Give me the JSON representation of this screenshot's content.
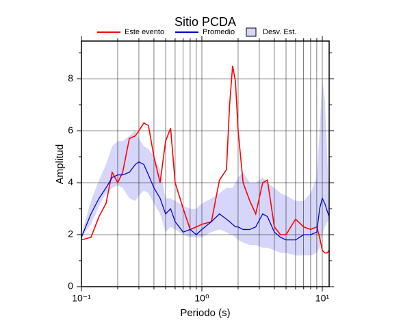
{
  "chart_data": {
    "type": "line",
    "title": "Sitio PCDA",
    "xlabel": "Periodo (s)",
    "ylabel": "Amplitud",
    "xscale": "log",
    "grid": true,
    "legend": "top",
    "xlim": [
      0.1,
      11.4
    ],
    "ylim": [
      0,
      9.45
    ],
    "xticks": [
      {
        "value": 0.1,
        "label": "10⁻¹"
      },
      {
        "value": 1,
        "label": "10⁰"
      },
      {
        "value": 10,
        "label": "10¹"
      }
    ],
    "xminorticks": [
      0.2,
      0.3,
      0.4,
      0.5,
      0.6,
      0.7,
      0.8,
      0.9,
      2,
      3,
      4,
      5,
      6,
      7,
      8,
      9
    ],
    "yticks": [
      0,
      2,
      4,
      6,
      8
    ],
    "yminorticks": [
      1,
      3,
      5,
      7,
      9
    ],
    "x": [
      0.1,
      0.12,
      0.14,
      0.16,
      0.18,
      0.2,
      0.22,
      0.25,
      0.28,
      0.3,
      0.33,
      0.36,
      0.4,
      0.45,
      0.5,
      0.55,
      0.6,
      0.7,
      0.8,
      0.9,
      1.0,
      1.2,
      1.4,
      1.6,
      1.7,
      1.8,
      1.9,
      2.0,
      2.2,
      2.5,
      2.8,
      3.2,
      3.5,
      4,
      4.5,
      5,
      6,
      7,
      8,
      9,
      9.5,
      10,
      10.5,
      11,
      11.4
    ],
    "series": [
      {
        "name": "Desv. Est.",
        "color": "#d6d6fa",
        "kind": "band",
        "lower": [
          1.9,
          2.4,
          3.1,
          3.6,
          3.8,
          3.9,
          3.8,
          3.4,
          3.3,
          3.5,
          3.7,
          3.6,
          3.2,
          2.8,
          2.1,
          2.3,
          2.2,
          2.0,
          1.9,
          1.9,
          1.9,
          2.1,
          2.2,
          2.1,
          2.0,
          2.0,
          1.9,
          1.8,
          1.7,
          1.6,
          1.6,
          1.5,
          1.5,
          1.4,
          1.3,
          1.3,
          1.2,
          1.2,
          1.2,
          1.3,
          1.5,
          2.0,
          2.3,
          2.5,
          2.6
        ],
        "upper": [
          2.0,
          3.3,
          4.1,
          4.7,
          5.4,
          5.6,
          5.6,
          5.8,
          6.0,
          5.7,
          5.4,
          5.3,
          5.0,
          4.5,
          3.4,
          3.4,
          3.3,
          3.1,
          3.0,
          3.0,
          3.2,
          3.4,
          3.6,
          3.8,
          3.8,
          3.8,
          4.0,
          4.2,
          4.4,
          4.0,
          4.0,
          4.2,
          4.0,
          3.8,
          3.6,
          3.5,
          3.3,
          3.3,
          3.6,
          4.2,
          6.0,
          8.0,
          7.2,
          5.0,
          3.2
        ]
      },
      {
        "name": "Este evento",
        "color": "#ff0000",
        "kind": "line",
        "values": [
          1.8,
          1.9,
          2.7,
          3.2,
          4.4,
          4.0,
          4.4,
          5.7,
          5.8,
          6.0,
          6.3,
          6.2,
          5.0,
          4.0,
          5.6,
          6.1,
          4.0,
          3.0,
          2.2,
          2.3,
          2.4,
          2.5,
          4.1,
          4.5,
          7.0,
          8.5,
          7.9,
          6.0,
          4.0,
          3.3,
          2.8,
          4.0,
          4.1,
          2.3,
          2.0,
          2.0,
          2.6,
          2.3,
          2.2,
          2.3,
          1.9,
          1.4,
          1.3,
          1.3,
          1.4
        ]
      },
      {
        "name": "Promedio",
        "color": "#0000cc",
        "kind": "line",
        "values": [
          1.9,
          2.8,
          3.4,
          3.8,
          4.2,
          4.3,
          4.3,
          4.4,
          4.7,
          4.8,
          4.7,
          4.3,
          3.8,
          3.4,
          2.8,
          3.0,
          2.5,
          2.1,
          2.2,
          2.0,
          2.2,
          2.5,
          2.8,
          2.6,
          2.5,
          2.4,
          2.3,
          2.3,
          2.2,
          2.2,
          2.3,
          2.8,
          2.7,
          2.1,
          1.9,
          1.8,
          1.8,
          2.0,
          2.0,
          2.1,
          3.0,
          3.4,
          3.2,
          2.9,
          2.7
        ]
      }
    ]
  }
}
